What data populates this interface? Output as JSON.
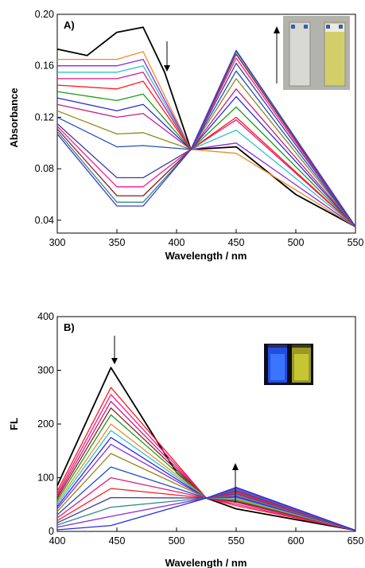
{
  "chart_data": [
    {
      "type": "line",
      "panel_label": "A)",
      "xlabel": "Wavelength / nm",
      "ylabel": "Absorbance",
      "xlim": [
        300,
        550
      ],
      "ylim": [
        0.03,
        0.2
      ],
      "xticks": [
        "300",
        "350",
        "400",
        "450",
        "500",
        "550"
      ],
      "yticks": [
        "0.04",
        "0.08",
        "0.12",
        "0.16",
        "0.20"
      ],
      "isosbestic_point": {
        "x": 412,
        "y": 0.095
      },
      "annotations": [
        "absorbance decreases near 370 nm (down arrow)",
        "absorbance increases near 450 nm (up arrow)",
        "inset photo: two cuvettes, colourless (left) and yellow (right)"
      ],
      "series_count": 16,
      "series": [
        {
          "color": "#000000",
          "values": [
            {
              "x": 300,
              "y": 0.173
            },
            {
              "x": 325,
              "y": 0.168
            },
            {
              "x": 350,
              "y": 0.186
            },
            {
              "x": 372,
              "y": 0.19
            },
            {
              "x": 390,
              "y": 0.155
            },
            {
              "x": 412,
              "y": 0.095
            },
            {
              "x": 450,
              "y": 0.097
            },
            {
              "x": 500,
              "y": 0.06
            },
            {
              "x": 550,
              "y": 0.035
            }
          ]
        },
        {
          "color": "#f08a2a",
          "values": [
            {
              "x": 300,
              "y": 0.165
            },
            {
              "x": 350,
              "y": 0.165
            },
            {
              "x": 372,
              "y": 0.171
            },
            {
              "x": 412,
              "y": 0.095
            },
            {
              "x": 450,
              "y": 0.092
            },
            {
              "x": 550,
              "y": 0.035
            }
          ]
        },
        {
          "color": "#8a2be2",
          "values": [
            {
              "x": 300,
              "y": 0.16
            },
            {
              "x": 350,
              "y": 0.16
            },
            {
              "x": 372,
              "y": 0.165
            },
            {
              "x": 412,
              "y": 0.095
            },
            {
              "x": 450,
              "y": 0.1
            },
            {
              "x": 550,
              "y": 0.035
            }
          ]
        },
        {
          "color": "#2ec4c4",
          "values": [
            {
              "x": 300,
              "y": 0.155
            },
            {
              "x": 350,
              "y": 0.155
            },
            {
              "x": 372,
              "y": 0.16
            },
            {
              "x": 412,
              "y": 0.095
            },
            {
              "x": 450,
              "y": 0.11
            },
            {
              "x": 550,
              "y": 0.035
            }
          ]
        },
        {
          "color": "#e0197d",
          "values": [
            {
              "x": 300,
              "y": 0.15
            },
            {
              "x": 350,
              "y": 0.15
            },
            {
              "x": 372,
              "y": 0.155
            },
            {
              "x": 412,
              "y": 0.095
            },
            {
              "x": 450,
              "y": 0.118
            },
            {
              "x": 550,
              "y": 0.035
            }
          ]
        },
        {
          "color": "#ff1a1a",
          "values": [
            {
              "x": 300,
              "y": 0.145
            },
            {
              "x": 350,
              "y": 0.142
            },
            {
              "x": 372,
              "y": 0.148
            },
            {
              "x": 412,
              "y": 0.095
            },
            {
              "x": 450,
              "y": 0.12
            },
            {
              "x": 550,
              "y": 0.035
            }
          ]
        },
        {
          "color": "#1a9e1a",
          "values": [
            {
              "x": 300,
              "y": 0.14
            },
            {
              "x": 350,
              "y": 0.133
            },
            {
              "x": 372,
              "y": 0.138
            },
            {
              "x": 412,
              "y": 0.095
            },
            {
              "x": 450,
              "y": 0.128
            },
            {
              "x": 550,
              "y": 0.035
            }
          ]
        },
        {
          "color": "#2a2ae0",
          "values": [
            {
              "x": 300,
              "y": 0.135
            },
            {
              "x": 350,
              "y": 0.125
            },
            {
              "x": 372,
              "y": 0.13
            },
            {
              "x": 412,
              "y": 0.095
            },
            {
              "x": 450,
              "y": 0.136
            },
            {
              "x": 550,
              "y": 0.035
            }
          ]
        },
        {
          "color": "#c51f8a",
          "values": [
            {
              "x": 300,
              "y": 0.13
            },
            {
              "x": 350,
              "y": 0.12
            },
            {
              "x": 372,
              "y": 0.123
            },
            {
              "x": 412,
              "y": 0.095
            },
            {
              "x": 450,
              "y": 0.142
            },
            {
              "x": 550,
              "y": 0.035
            }
          ]
        },
        {
          "color": "#8c8c1a",
          "values": [
            {
              "x": 300,
              "y": 0.125
            },
            {
              "x": 350,
              "y": 0.107
            },
            {
              "x": 372,
              "y": 0.108
            },
            {
              "x": 412,
              "y": 0.095
            },
            {
              "x": 450,
              "y": 0.15
            },
            {
              "x": 550,
              "y": 0.035
            }
          ]
        },
        {
          "color": "#1f4fc7",
          "values": [
            {
              "x": 300,
              "y": 0.12
            },
            {
              "x": 350,
              "y": 0.097
            },
            {
              "x": 372,
              "y": 0.098
            },
            {
              "x": 412,
              "y": 0.095
            },
            {
              "x": 450,
              "y": 0.156
            },
            {
              "x": 550,
              "y": 0.035
            }
          ]
        },
        {
          "color": "#3c3c9e",
          "values": [
            {
              "x": 300,
              "y": 0.115
            },
            {
              "x": 350,
              "y": 0.073
            },
            {
              "x": 372,
              "y": 0.073
            },
            {
              "x": 412,
              "y": 0.095
            },
            {
              "x": 450,
              "y": 0.162
            },
            {
              "x": 550,
              "y": 0.035
            }
          ]
        },
        {
          "color": "#ff1493",
          "values": [
            {
              "x": 300,
              "y": 0.113
            },
            {
              "x": 350,
              "y": 0.066
            },
            {
              "x": 372,
              "y": 0.066
            },
            {
              "x": 412,
              "y": 0.095
            },
            {
              "x": 450,
              "y": 0.166
            },
            {
              "x": 550,
              "y": 0.035
            }
          ]
        },
        {
          "color": "#8b1a1a",
          "values": [
            {
              "x": 300,
              "y": 0.111
            },
            {
              "x": 350,
              "y": 0.059
            },
            {
              "x": 372,
              "y": 0.059
            },
            {
              "x": 412,
              "y": 0.095
            },
            {
              "x": 450,
              "y": 0.169
            },
            {
              "x": 550,
              "y": 0.035
            }
          ]
        },
        {
          "color": "#2e8b8b",
          "values": [
            {
              "x": 300,
              "y": 0.109
            },
            {
              "x": 350,
              "y": 0.054
            },
            {
              "x": 372,
              "y": 0.054
            },
            {
              "x": 412,
              "y": 0.095
            },
            {
              "x": 450,
              "y": 0.171
            },
            {
              "x": 550,
              "y": 0.035
            }
          ]
        },
        {
          "color": "#3a3ad0",
          "values": [
            {
              "x": 300,
              "y": 0.107
            },
            {
              "x": 350,
              "y": 0.051
            },
            {
              "x": 372,
              "y": 0.051
            },
            {
              "x": 412,
              "y": 0.095
            },
            {
              "x": 450,
              "y": 0.172
            },
            {
              "x": 550,
              "y": 0.035
            }
          ]
        }
      ]
    },
    {
      "type": "line",
      "panel_label": "B)",
      "xlabel": "Wavelength / nm",
      "ylabel": "FL",
      "xlim": [
        400,
        650
      ],
      "ylim": [
        0,
        400
      ],
      "xticks": [
        "400",
        "450",
        "500",
        "550",
        "600",
        "650"
      ],
      "yticks": [
        "0",
        "100",
        "200",
        "300",
        "400"
      ],
      "isosbestic_point": {
        "x": 525,
        "y": 62
      },
      "annotations": [
        "emission at ~445 nm decreases (down arrow)",
        "emission at ~550 nm increases (up arrow)",
        "inset photo: two cuvettes under UV light, blue (left) and yellow-green (right)"
      ],
      "series_count": 18,
      "series": [
        {
          "color": "#000000",
          "values": [
            {
              "x": 400,
              "y": 85
            },
            {
              "x": 445,
              "y": 305
            },
            {
              "x": 500,
              "y": 110
            },
            {
              "x": 525,
              "y": 62
            },
            {
              "x": 550,
              "y": 42
            },
            {
              "x": 650,
              "y": 2
            }
          ]
        },
        {
          "color": "#ff1a1a",
          "values": [
            {
              "x": 400,
              "y": 75
            },
            {
              "x": 445,
              "y": 268
            },
            {
              "x": 525,
              "y": 62
            },
            {
              "x": 550,
              "y": 48
            },
            {
              "x": 650,
              "y": 2
            }
          ]
        },
        {
          "color": "#ff1493",
          "values": [
            {
              "x": 400,
              "y": 70
            },
            {
              "x": 445,
              "y": 255
            },
            {
              "x": 525,
              "y": 62
            },
            {
              "x": 550,
              "y": 51
            },
            {
              "x": 650,
              "y": 2
            }
          ]
        },
        {
          "color": "#c51f8a",
          "values": [
            {
              "x": 400,
              "y": 66
            },
            {
              "x": 445,
              "y": 242
            },
            {
              "x": 525,
              "y": 62
            },
            {
              "x": 550,
              "y": 54
            },
            {
              "x": 650,
              "y": 2
            }
          ]
        },
        {
          "color": "#8b1a1a",
          "values": [
            {
              "x": 400,
              "y": 62
            },
            {
              "x": 445,
              "y": 230
            },
            {
              "x": 525,
              "y": 62
            },
            {
              "x": 550,
              "y": 56
            },
            {
              "x": 650,
              "y": 2
            }
          ]
        },
        {
          "color": "#1a9e1a",
          "values": [
            {
              "x": 400,
              "y": 58
            },
            {
              "x": 445,
              "y": 217
            },
            {
              "x": 525,
              "y": 62
            },
            {
              "x": 550,
              "y": 58
            },
            {
              "x": 650,
              "y": 2
            }
          ]
        },
        {
          "color": "#f08a2a",
          "values": [
            {
              "x": 400,
              "y": 54
            },
            {
              "x": 445,
              "y": 200
            },
            {
              "x": 525,
              "y": 62
            },
            {
              "x": 550,
              "y": 60
            },
            {
              "x": 650,
              "y": 2
            }
          ]
        },
        {
          "color": "#2ec4c4",
          "values": [
            {
              "x": 400,
              "y": 50
            },
            {
              "x": 445,
              "y": 188
            },
            {
              "x": 525,
              "y": 62
            },
            {
              "x": 550,
              "y": 62
            },
            {
              "x": 650,
              "y": 2
            }
          ]
        },
        {
          "color": "#2a2ae0",
          "values": [
            {
              "x": 400,
              "y": 46
            },
            {
              "x": 445,
              "y": 175
            },
            {
              "x": 525,
              "y": 62
            },
            {
              "x": 550,
              "y": 64
            },
            {
              "x": 650,
              "y": 2
            }
          ]
        },
        {
          "color": "#8a2be2",
          "values": [
            {
              "x": 400,
              "y": 42
            },
            {
              "x": 445,
              "y": 162
            },
            {
              "x": 525,
              "y": 62
            },
            {
              "x": 550,
              "y": 66
            },
            {
              "x": 650,
              "y": 2
            }
          ]
        },
        {
          "color": "#8c8c1a",
          "values": [
            {
              "x": 400,
              "y": 37
            },
            {
              "x": 445,
              "y": 145
            },
            {
              "x": 525,
              "y": 62
            },
            {
              "x": 550,
              "y": 68
            },
            {
              "x": 650,
              "y": 2
            }
          ]
        },
        {
          "color": "#1f4fc7",
          "values": [
            {
              "x": 400,
              "y": 31
            },
            {
              "x": 445,
              "y": 120
            },
            {
              "x": 525,
              "y": 62
            },
            {
              "x": 550,
              "y": 70
            },
            {
              "x": 650,
              "y": 2
            }
          ]
        },
        {
          "color": "#e0197d",
          "values": [
            {
              "x": 400,
              "y": 25
            },
            {
              "x": 445,
              "y": 100
            },
            {
              "x": 525,
              "y": 62
            },
            {
              "x": 550,
              "y": 72
            },
            {
              "x": 650,
              "y": 2
            }
          ]
        },
        {
          "color": "#ff1a1a",
          "values": [
            {
              "x": 400,
              "y": 20
            },
            {
              "x": 445,
              "y": 80
            },
            {
              "x": 525,
              "y": 62
            },
            {
              "x": 550,
              "y": 74
            },
            {
              "x": 650,
              "y": 2
            }
          ]
        },
        {
          "color": "#3c3c9e",
          "values": [
            {
              "x": 400,
              "y": 16
            },
            {
              "x": 445,
              "y": 63
            },
            {
              "x": 525,
              "y": 62
            },
            {
              "x": 550,
              "y": 76
            },
            {
              "x": 650,
              "y": 2
            }
          ]
        },
        {
          "color": "#2e8b8b",
          "values": [
            {
              "x": 400,
              "y": 12
            },
            {
              "x": 445,
              "y": 45
            },
            {
              "x": 525,
              "y": 62
            },
            {
              "x": 550,
              "y": 78
            },
            {
              "x": 650,
              "y": 2
            }
          ]
        },
        {
          "color": "#8a2be2",
          "values": [
            {
              "x": 400,
              "y": 8
            },
            {
              "x": 445,
              "y": 28
            },
            {
              "x": 525,
              "y": 62
            },
            {
              "x": 550,
              "y": 80
            },
            {
              "x": 650,
              "y": 2
            }
          ]
        },
        {
          "color": "#2a2ae0",
          "values": [
            {
              "x": 400,
              "y": 3
            },
            {
              "x": 445,
              "y": 11
            },
            {
              "x": 525,
              "y": 62
            },
            {
              "x": 550,
              "y": 82
            },
            {
              "x": 650,
              "y": 2
            }
          ]
        }
      ]
    }
  ]
}
